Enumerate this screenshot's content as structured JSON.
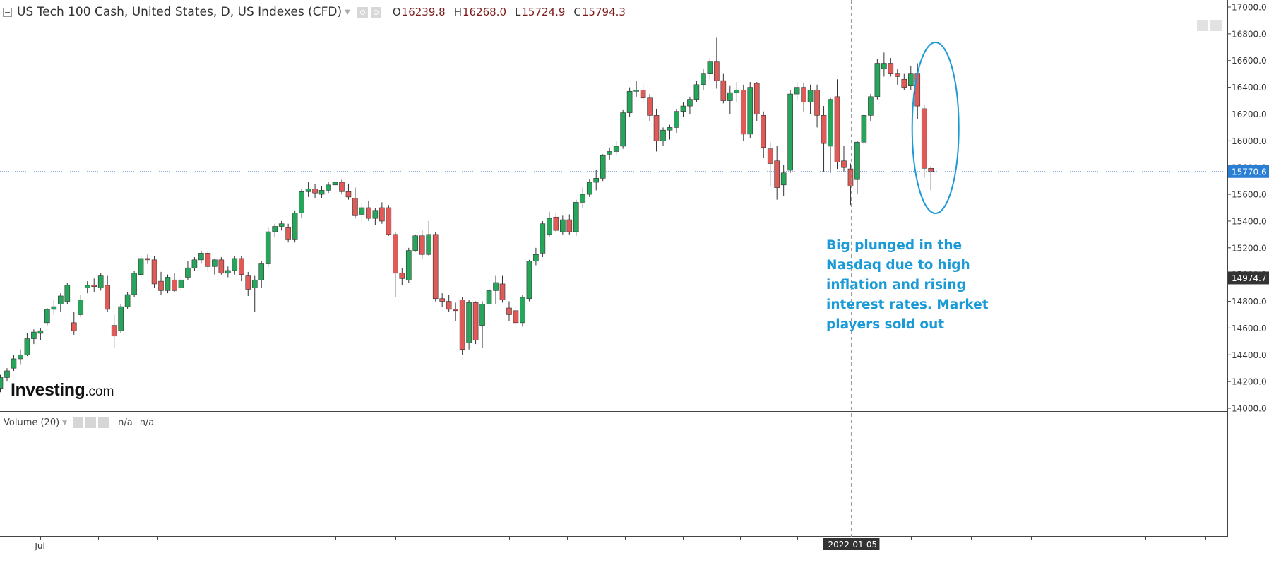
{
  "header": {
    "symbol_title": "US Tech 100 Cash, United States, D, US Indexes (CFD)",
    "ohlc": [
      {
        "label": "O",
        "value": "16239.8"
      },
      {
        "label": "H",
        "value": "16268.0"
      },
      {
        "label": "L",
        "value": "15724.9"
      },
      {
        "label": "C",
        "value": "15794.3"
      }
    ]
  },
  "volume_panel": {
    "title": "Volume (20)",
    "value1": "n/a",
    "value2": "n/a"
  },
  "annotation": {
    "text": "Big plunged in the Nasdaq due to high inflation and rising interest rates. Market players sold out"
  },
  "logo": {
    "main": "Investing",
    "suffix": ".com"
  },
  "colors": {
    "up": "#26a65b",
    "down": "#e05a57",
    "annotation": "#1a9ad6",
    "price_line": "#6a8fd8",
    "price_badge_current": "#2a7fd4",
    "price_badge_cross": "#333333"
  },
  "chart_data": {
    "type": "candlestick",
    "title": "US Tech 100 Cash, United States, D, US Indexes (CFD)",
    "ylim": [
      14000,
      17100
    ],
    "y_ticks": [
      14000,
      14200,
      14400,
      14600,
      14800,
      15000,
      15200,
      15400,
      15600,
      15800,
      16000,
      16200,
      16400,
      16600,
      16800,
      17000
    ],
    "y_tick_labels": [
      "14000.0",
      "14200.0",
      "14400.0",
      "14600.0",
      "14800.0",
      "15000.0",
      "15200.0",
      "15400.0",
      "15600.0",
      "15800.0",
      "16000.0",
      "16200.0",
      "16400.0",
      "16600.0",
      "16800.0",
      "17000.0"
    ],
    "current_price_label": "15770.6",
    "current_price": 15770.6,
    "crosshair_price_label": "14974.7",
    "crosshair_price": 14974.7,
    "crosshair_date_label": "2022-01-05",
    "crosshair_index": 127,
    "x_tick_labels": [
      {
        "index": 6,
        "label": "Jul"
      }
    ],
    "grid": false,
    "candles": [
      {
        "o": 14150,
        "h": 14250,
        "l": 14120,
        "c": 14230
      },
      {
        "o": 14230,
        "h": 14300,
        "l": 14200,
        "c": 14280
      },
      {
        "o": 14300,
        "h": 14400,
        "l": 14280,
        "c": 14370
      },
      {
        "o": 14370,
        "h": 14440,
        "l": 14330,
        "c": 14400
      },
      {
        "o": 14400,
        "h": 14560,
        "l": 14390,
        "c": 14520
      },
      {
        "o": 14520,
        "h": 14590,
        "l": 14480,
        "c": 14570
      },
      {
        "o": 14560,
        "h": 14600,
        "l": 14510,
        "c": 14580
      },
      {
        "o": 14640,
        "h": 14750,
        "l": 14620,
        "c": 14740
      },
      {
        "o": 14740,
        "h": 14810,
        "l": 14700,
        "c": 14760
      },
      {
        "o": 14780,
        "h": 14860,
        "l": 14720,
        "c": 14840
      },
      {
        "o": 14800,
        "h": 14940,
        "l": 14780,
        "c": 14920
      },
      {
        "o": 14640,
        "h": 14720,
        "l": 14550,
        "c": 14580
      },
      {
        "o": 14700,
        "h": 14850,
        "l": 14680,
        "c": 14810
      },
      {
        "o": 14900,
        "h": 14950,
        "l": 14860,
        "c": 14920
      },
      {
        "o": 14920,
        "h": 14970,
        "l": 14870,
        "c": 14910
      },
      {
        "o": 14900,
        "h": 15010,
        "l": 14880,
        "c": 14990
      },
      {
        "o": 14920,
        "h": 14990,
        "l": 14720,
        "c": 14740
      },
      {
        "o": 14620,
        "h": 14700,
        "l": 14450,
        "c": 14540
      },
      {
        "o": 14580,
        "h": 14780,
        "l": 14560,
        "c": 14760
      },
      {
        "o": 14760,
        "h": 14870,
        "l": 14740,
        "c": 14850
      },
      {
        "o": 14850,
        "h": 15030,
        "l": 14830,
        "c": 15010
      },
      {
        "o": 15000,
        "h": 15140,
        "l": 14980,
        "c": 15120
      },
      {
        "o": 15120,
        "h": 15150,
        "l": 15080,
        "c": 15110
      },
      {
        "o": 15110,
        "h": 15140,
        "l": 14900,
        "c": 14930
      },
      {
        "o": 14950,
        "h": 15020,
        "l": 14850,
        "c": 14880
      },
      {
        "o": 14880,
        "h": 15000,
        "l": 14860,
        "c": 14980
      },
      {
        "o": 14960,
        "h": 15010,
        "l": 14870,
        "c": 14880
      },
      {
        "o": 14900,
        "h": 14990,
        "l": 14880,
        "c": 14960
      },
      {
        "o": 14980,
        "h": 15100,
        "l": 14960,
        "c": 15050
      },
      {
        "o": 15050,
        "h": 15130,
        "l": 15030,
        "c": 15110
      },
      {
        "o": 15110,
        "h": 15180,
        "l": 15080,
        "c": 15160
      },
      {
        "o": 15160,
        "h": 15170,
        "l": 15030,
        "c": 15060
      },
      {
        "o": 15060,
        "h": 15120,
        "l": 15000,
        "c": 15110
      },
      {
        "o": 15110,
        "h": 15130,
        "l": 15000,
        "c": 15010
      },
      {
        "o": 15010,
        "h": 15060,
        "l": 14980,
        "c": 15030
      },
      {
        "o": 15030,
        "h": 15140,
        "l": 15000,
        "c": 15120
      },
      {
        "o": 15120,
        "h": 15140,
        "l": 14950,
        "c": 15000
      },
      {
        "o": 14990,
        "h": 15020,
        "l": 14840,
        "c": 14890
      },
      {
        "o": 14900,
        "h": 14990,
        "l": 14720,
        "c": 14960
      },
      {
        "o": 14960,
        "h": 15100,
        "l": 14900,
        "c": 15080
      },
      {
        "o": 15080,
        "h": 15350,
        "l": 15060,
        "c": 15320
      },
      {
        "o": 15320,
        "h": 15380,
        "l": 15280,
        "c": 15360
      },
      {
        "o": 15360,
        "h": 15400,
        "l": 15330,
        "c": 15380
      },
      {
        "o": 15350,
        "h": 15380,
        "l": 15240,
        "c": 15260
      },
      {
        "o": 15260,
        "h": 15480,
        "l": 15240,
        "c": 15460
      },
      {
        "o": 15460,
        "h": 15640,
        "l": 15420,
        "c": 15620
      },
      {
        "o": 15620,
        "h": 15690,
        "l": 15580,
        "c": 15640
      },
      {
        "o": 15640,
        "h": 15680,
        "l": 15570,
        "c": 15610
      },
      {
        "o": 15600,
        "h": 15660,
        "l": 15570,
        "c": 15630
      },
      {
        "o": 15630,
        "h": 15690,
        "l": 15610,
        "c": 15670
      },
      {
        "o": 15670,
        "h": 15710,
        "l": 15640,
        "c": 15690
      },
      {
        "o": 15690,
        "h": 15710,
        "l": 15600,
        "c": 15620
      },
      {
        "o": 15620,
        "h": 15680,
        "l": 15560,
        "c": 15580
      },
      {
        "o": 15570,
        "h": 15650,
        "l": 15420,
        "c": 15440
      },
      {
        "o": 15450,
        "h": 15540,
        "l": 15390,
        "c": 15500
      },
      {
        "o": 15500,
        "h": 15550,
        "l": 15400,
        "c": 15420
      },
      {
        "o": 15420,
        "h": 15500,
        "l": 15370,
        "c": 15480
      },
      {
        "o": 15500,
        "h": 15540,
        "l": 15380,
        "c": 15400
      },
      {
        "o": 15500,
        "h": 15520,
        "l": 15290,
        "c": 15300
      },
      {
        "o": 15300,
        "h": 15320,
        "l": 14830,
        "c": 15010
      },
      {
        "o": 15010,
        "h": 15050,
        "l": 14920,
        "c": 14970
      },
      {
        "o": 14960,
        "h": 15200,
        "l": 14940,
        "c": 15180
      },
      {
        "o": 15180,
        "h": 15300,
        "l": 15170,
        "c": 15290
      },
      {
        "o": 15290,
        "h": 15330,
        "l": 15120,
        "c": 15150
      },
      {
        "o": 15150,
        "h": 15400,
        "l": 15140,
        "c": 15300
      },
      {
        "o": 15300,
        "h": 15320,
        "l": 14800,
        "c": 14820
      },
      {
        "o": 14820,
        "h": 14860,
        "l": 14760,
        "c": 14800
      },
      {
        "o": 14800,
        "h": 14850,
        "l": 14720,
        "c": 14740
      },
      {
        "o": 14740,
        "h": 14790,
        "l": 14650,
        "c": 14730
      },
      {
        "o": 14810,
        "h": 14830,
        "l": 14400,
        "c": 14440
      },
      {
        "o": 14490,
        "h": 14810,
        "l": 14440,
        "c": 14790
      },
      {
        "o": 14790,
        "h": 14800,
        "l": 14480,
        "c": 14510
      },
      {
        "o": 14620,
        "h": 14800,
        "l": 14450,
        "c": 14780
      },
      {
        "o": 14780,
        "h": 14960,
        "l": 14760,
        "c": 14880
      },
      {
        "o": 14880,
        "h": 14990,
        "l": 14780,
        "c": 14940
      },
      {
        "o": 14930,
        "h": 14990,
        "l": 14790,
        "c": 14810
      },
      {
        "o": 14750,
        "h": 14800,
        "l": 14650,
        "c": 14700
      },
      {
        "o": 14730,
        "h": 14760,
        "l": 14600,
        "c": 14640
      },
      {
        "o": 14640,
        "h": 14850,
        "l": 14610,
        "c": 14830
      },
      {
        "o": 14820,
        "h": 15110,
        "l": 14800,
        "c": 15100
      },
      {
        "o": 15100,
        "h": 15200,
        "l": 15070,
        "c": 15150
      },
      {
        "o": 15160,
        "h": 15400,
        "l": 15130,
        "c": 15380
      },
      {
        "o": 15300,
        "h": 15470,
        "l": 15280,
        "c": 15420
      },
      {
        "o": 15430,
        "h": 15460,
        "l": 15320,
        "c": 15330
      },
      {
        "o": 15320,
        "h": 15440,
        "l": 15300,
        "c": 15410
      },
      {
        "o": 15410,
        "h": 15450,
        "l": 15300,
        "c": 15320
      },
      {
        "o": 15320,
        "h": 15560,
        "l": 15290,
        "c": 15540
      },
      {
        "o": 15540,
        "h": 15650,
        "l": 15500,
        "c": 15600
      },
      {
        "o": 15600,
        "h": 15710,
        "l": 15580,
        "c": 15690
      },
      {
        "o": 15690,
        "h": 15780,
        "l": 15630,
        "c": 15720
      },
      {
        "o": 15720,
        "h": 15900,
        "l": 15700,
        "c": 15890
      },
      {
        "o": 15900,
        "h": 15950,
        "l": 15860,
        "c": 15920
      },
      {
        "o": 15920,
        "h": 16000,
        "l": 15890,
        "c": 15960
      },
      {
        "o": 15960,
        "h": 16230,
        "l": 15940,
        "c": 16210
      },
      {
        "o": 16210,
        "h": 16400,
        "l": 16180,
        "c": 16370
      },
      {
        "o": 16370,
        "h": 16450,
        "l": 16330,
        "c": 16380
      },
      {
        "o": 16380,
        "h": 16420,
        "l": 16290,
        "c": 16320
      },
      {
        "o": 16320,
        "h": 16350,
        "l": 16150,
        "c": 16190
      },
      {
        "o": 16190,
        "h": 16240,
        "l": 15920,
        "c": 16000
      },
      {
        "o": 16000,
        "h": 16100,
        "l": 15960,
        "c": 16080
      },
      {
        "o": 16080,
        "h": 16120,
        "l": 16010,
        "c": 16100
      },
      {
        "o": 16100,
        "h": 16240,
        "l": 16060,
        "c": 16220
      },
      {
        "o": 16220,
        "h": 16290,
        "l": 16180,
        "c": 16260
      },
      {
        "o": 16260,
        "h": 16330,
        "l": 16200,
        "c": 16310
      },
      {
        "o": 16310,
        "h": 16450,
        "l": 16290,
        "c": 16420
      },
      {
        "o": 16420,
        "h": 16540,
        "l": 16380,
        "c": 16500
      },
      {
        "o": 16500,
        "h": 16620,
        "l": 16460,
        "c": 16590
      },
      {
        "o": 16590,
        "h": 16770,
        "l": 16390,
        "c": 16450
      },
      {
        "o": 16450,
        "h": 16500,
        "l": 16280,
        "c": 16300
      },
      {
        "o": 16300,
        "h": 16410,
        "l": 16200,
        "c": 16360
      },
      {
        "o": 16360,
        "h": 16440,
        "l": 16290,
        "c": 16380
      },
      {
        "o": 16380,
        "h": 16420,
        "l": 16000,
        "c": 16050
      },
      {
        "o": 16050,
        "h": 16440,
        "l": 16020,
        "c": 16400
      },
      {
        "o": 16430,
        "h": 16440,
        "l": 16150,
        "c": 16200
      },
      {
        "o": 16190,
        "h": 16220,
        "l": 15870,
        "c": 15950
      },
      {
        "o": 15940,
        "h": 15990,
        "l": 15660,
        "c": 15830
      },
      {
        "o": 15850,
        "h": 15960,
        "l": 15560,
        "c": 15650
      },
      {
        "o": 15670,
        "h": 15820,
        "l": 15590,
        "c": 15760
      },
      {
        "o": 15780,
        "h": 16380,
        "l": 15760,
        "c": 16350
      },
      {
        "o": 16350,
        "h": 16440,
        "l": 16300,
        "c": 16400
      },
      {
        "o": 16400,
        "h": 16430,
        "l": 16220,
        "c": 16290
      },
      {
        "o": 16290,
        "h": 16420,
        "l": 16200,
        "c": 16380
      },
      {
        "o": 16380,
        "h": 16420,
        "l": 16100,
        "c": 16190
      },
      {
        "o": 16190,
        "h": 16260,
        "l": 15770,
        "c": 15980
      },
      {
        "o": 15960,
        "h": 16320,
        "l": 15760,
        "c": 16310
      },
      {
        "o": 16330,
        "h": 16460,
        "l": 15790,
        "c": 15840
      },
      {
        "o": 15850,
        "h": 15960,
        "l": 15770,
        "c": 15800
      },
      {
        "o": 15790,
        "h": 15830,
        "l": 15520,
        "c": 15660
      },
      {
        "o": 15710,
        "h": 16000,
        "l": 15600,
        "c": 15990
      },
      {
        "o": 15990,
        "h": 16200,
        "l": 15970,
        "c": 16190
      },
      {
        "o": 16190,
        "h": 16350,
        "l": 16150,
        "c": 16330
      },
      {
        "o": 16330,
        "h": 16610,
        "l": 16310,
        "c": 16580
      },
      {
        "o": 16540,
        "h": 16660,
        "l": 16480,
        "c": 16580
      },
      {
        "o": 16580,
        "h": 16620,
        "l": 16480,
        "c": 16500
      },
      {
        "o": 16500,
        "h": 16540,
        "l": 16420,
        "c": 16480
      },
      {
        "o": 16460,
        "h": 16500,
        "l": 16380,
        "c": 16400
      },
      {
        "o": 16410,
        "h": 16560,
        "l": 16380,
        "c": 16500
      },
      {
        "o": 16500,
        "h": 16580,
        "l": 16160,
        "c": 16260
      },
      {
        "o": 16239.8,
        "h": 16268,
        "l": 15724.9,
        "c": 15794.3
      },
      {
        "o": 15794.3,
        "h": 15810,
        "l": 15630,
        "c": 15770.6
      }
    ]
  }
}
